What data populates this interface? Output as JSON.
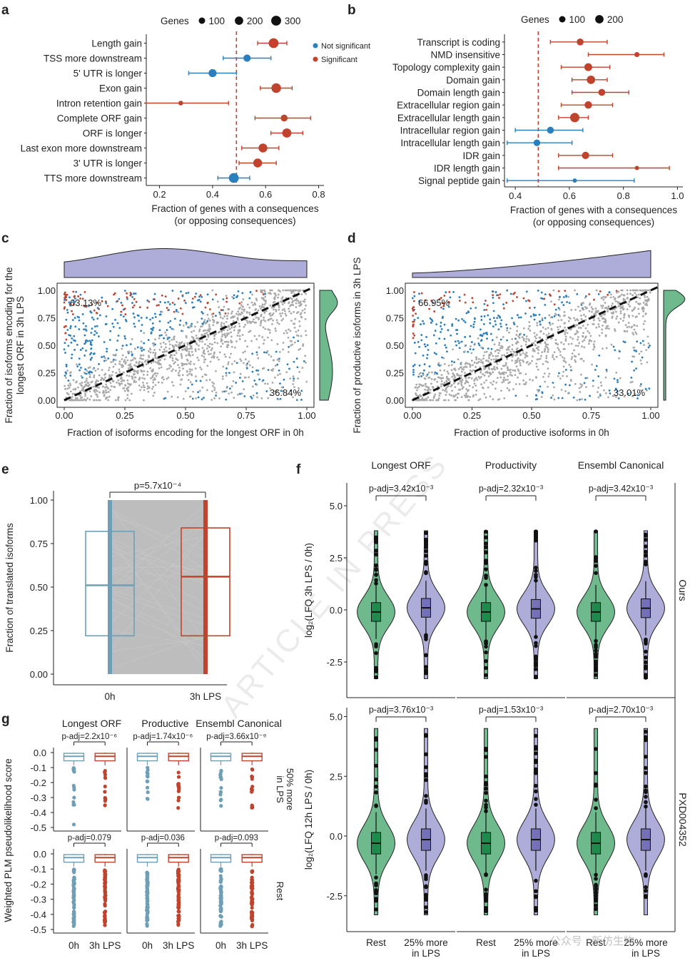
{
  "panel_letters": [
    "a",
    "b",
    "c",
    "d",
    "e",
    "f",
    "g"
  ],
  "watermark": "ARTICLE IN PRESS",
  "footer_watermark": "公众号 · 新仿生物",
  "colors": {
    "red": "#c0432d",
    "blue": "#2b7fbd",
    "grey": "#a9a9a9",
    "lavender": "#aeacd8",
    "green": "#6fba8c",
    "green_dark": "#1e8a4c",
    "lightblue": "#6e9fb7",
    "ci_gray": "#bdbdbd"
  },
  "chart_data": [
    {
      "panel": "a",
      "type": "scatter",
      "legend_size_title": "Genes",
      "legend_sizes": [
        "100",
        "200",
        "300"
      ],
      "legend_color": [
        "Not significant",
        "Significant"
      ],
      "xlabel": [
        "Fraction of genes with a consequences",
        "(or opposing consequences)"
      ],
      "xlim": [
        0.15,
        0.82
      ],
      "xticks": [
        "0.2",
        "0.4",
        "0.6",
        "0.8"
      ],
      "ref_x": 0.49,
      "rows": [
        {
          "label": "Length gain",
          "x": 0.63,
          "lo": 0.57,
          "hi": 0.68,
          "sig": true,
          "size": 300
        },
        {
          "label": "TSS more downstream",
          "x": 0.53,
          "lo": 0.44,
          "hi": 0.62,
          "sig": false,
          "size": 140
        },
        {
          "label": "5' UTR is longer",
          "x": 0.4,
          "lo": 0.31,
          "hi": 0.49,
          "sig": false,
          "size": 180
        },
        {
          "label": "Exon gain",
          "x": 0.64,
          "lo": 0.58,
          "hi": 0.7,
          "sig": true,
          "size": 280
        },
        {
          "label": "Intron retention gain",
          "x": 0.28,
          "lo": 0.15,
          "hi": 0.46,
          "sig": true,
          "size": 40
        },
        {
          "label": "Complete ORF gain",
          "x": 0.67,
          "lo": 0.56,
          "hi": 0.77,
          "sig": true,
          "size": 120
        },
        {
          "label": "ORF is longer",
          "x": 0.68,
          "lo": 0.62,
          "hi": 0.74,
          "sig": true,
          "size": 250
        },
        {
          "label": "Last exon more downstream",
          "x": 0.59,
          "lo": 0.51,
          "hi": 0.65,
          "sig": true,
          "size": 230
        },
        {
          "label": "3' UTR is longer",
          "x": 0.57,
          "lo": 0.5,
          "hi": 0.64,
          "sig": true,
          "size": 230
        },
        {
          "label": "TTS more downstream",
          "x": 0.48,
          "lo": 0.42,
          "hi": 0.54,
          "sig": false,
          "size": 300
        }
      ]
    },
    {
      "panel": "b",
      "type": "scatter",
      "legend_size_title": "Genes",
      "legend_sizes": [
        "100",
        "200"
      ],
      "xlabel": [
        "Fraction of genes with a consequences",
        "(or opposing consequences)"
      ],
      "xlim": [
        0.36,
        1.02
      ],
      "xticks": [
        "0.4",
        "0.6",
        "0.8",
        "1.0"
      ],
      "ref_x": 0.485,
      "rows": [
        {
          "label": "Transcript is coding",
          "x": 0.64,
          "lo": 0.53,
          "hi": 0.74,
          "sig": true,
          "size": 120
        },
        {
          "label": "NMD insensitive",
          "x": 0.85,
          "lo": 0.67,
          "hi": 0.95,
          "sig": true,
          "size": 50
        },
        {
          "label": "Topology complexity gain",
          "x": 0.67,
          "lo": 0.57,
          "hi": 0.75,
          "sig": true,
          "size": 170
        },
        {
          "label": "Domain gain",
          "x": 0.68,
          "lo": 0.61,
          "hi": 0.74,
          "sig": true,
          "size": 200
        },
        {
          "label": "Domain length gain",
          "x": 0.72,
          "lo": 0.61,
          "hi": 0.82,
          "sig": true,
          "size": 120
        },
        {
          "label": "Extracellular region gain",
          "x": 0.67,
          "lo": 0.57,
          "hi": 0.76,
          "sig": true,
          "size": 150
        },
        {
          "label": "Extracellular length gain",
          "x": 0.62,
          "lo": 0.56,
          "hi": 0.67,
          "sig": true,
          "size": 260
        },
        {
          "label": "Intracellular region gain",
          "x": 0.53,
          "lo": 0.4,
          "hi": 0.65,
          "sig": false,
          "size": 120
        },
        {
          "label": "Intracellular length gain",
          "x": 0.48,
          "lo": 0.37,
          "hi": 0.61,
          "sig": false,
          "size": 110
        },
        {
          "label": "IDR gain",
          "x": 0.66,
          "lo": 0.56,
          "hi": 0.76,
          "sig": true,
          "size": 140
        },
        {
          "label": "IDR length gain",
          "x": 0.85,
          "lo": 0.56,
          "hi": 0.97,
          "sig": true,
          "size": 30
        },
        {
          "label": "Signal peptide gain",
          "x": 0.62,
          "lo": 0.37,
          "hi": 0.84,
          "sig": false,
          "size": 30
        }
      ]
    },
    {
      "panel": "c",
      "type": "scatter",
      "xlabel": "Fraction of isoforms encoding for the longest ORF in 0h",
      "ylabel": [
        "Fraction of isoforms encoding for the",
        "longest ORF in 3h LPS"
      ],
      "ticks": [
        "0.00",
        "0.25",
        "0.50",
        "0.75",
        "1.00"
      ],
      "xlim": [
        0,
        1
      ],
      "ylim": [
        0,
        1
      ],
      "pct_upper": "63.13%",
      "pct_lower": "36.84%"
    },
    {
      "panel": "d",
      "type": "scatter",
      "xlabel": "Fraction of productive isoforms in 0h",
      "ylabel": [
        "Fraction of productive isoforms in 3h LPS"
      ],
      "ticks": [
        "0.00",
        "0.25",
        "0.50",
        "0.75",
        "1.00"
      ],
      "xlim": [
        0,
        1
      ],
      "ylim": [
        0,
        1
      ],
      "pct_upper": "66.95%",
      "pct_lower": "33.01%"
    },
    {
      "panel": "e",
      "type": "box",
      "ylabel": "Fraction of translated isoforms",
      "yticks": [
        "0.00",
        "0.25",
        "0.50",
        "0.75",
        "1.00"
      ],
      "ylim": [
        0,
        1
      ],
      "pvalue": "p=5.7x10⁻⁴",
      "groups": [
        {
          "name": "0h",
          "q1": 0.22,
          "median": 0.51,
          "q3": 0.82,
          "min": 0.0,
          "max": 1.0
        },
        {
          "name": "3h LPS",
          "q1": 0.22,
          "median": 0.56,
          "q3": 0.84,
          "min": 0.0,
          "max": 1.0
        }
      ]
    },
    {
      "panel": "f",
      "type": "violin",
      "facets_col": [
        "Longest ORF",
        "Productivity",
        "Ensembl Canonical"
      ],
      "facets_row": [
        "Ours",
        "PXD004352"
      ],
      "ylabels": [
        "log₂(LFQ 3h LPS / 0h)",
        "log₂(LFQ 12h LPS / 0h)"
      ],
      "yticks": [
        "-2.5",
        "0.0",
        "2.5",
        "5.0"
      ],
      "ylim": [
        -3.5,
        6.0
      ],
      "xcats": [
        "Rest",
        "25% more\nin LPS"
      ],
      "pvalues": [
        [
          "p-adj=3.42x10⁻³",
          "p-adj=2.32x10⁻³",
          "p-adj=3.42x10⁻³"
        ],
        [
          "p-adj=3.76x10⁻³",
          "p-adj=1.53x10⁻³",
          "p-adj=2.70x10⁻³"
        ]
      ],
      "medians": [
        [
          [
            -0.1,
            0.1
          ],
          [
            -0.1,
            0.05
          ],
          [
            -0.1,
            0.08
          ]
        ],
        [
          [
            -0.3,
            -0.15
          ],
          [
            -0.3,
            -0.15
          ],
          [
            -0.3,
            -0.15
          ]
        ]
      ]
    },
    {
      "panel": "g",
      "type": "box",
      "ylabel": "Weighted PLM pseudolikelihood score",
      "facets_col": [
        "Longest ORF",
        "Productive",
        "Ensembl Canonical"
      ],
      "facets_row": [
        "50% more\nin LPS",
        "Rest"
      ],
      "yticks": [
        "0.0",
        "-0.1",
        "-0.2",
        "-0.3",
        "-0.4",
        "-0.5"
      ],
      "ylim": [
        -0.52,
        0.02
      ],
      "xcats": [
        "0h",
        "3h LPS"
      ],
      "pvalues": [
        [
          "p-adj=2.2x10⁻⁶",
          "p-adj=1.74x10⁻⁶",
          "p-adj=3.66x10⁻⁹"
        ],
        [
          "p-adj=0.079",
          "p-adj=0.036",
          "p-adj=0.093"
        ]
      ]
    }
  ]
}
